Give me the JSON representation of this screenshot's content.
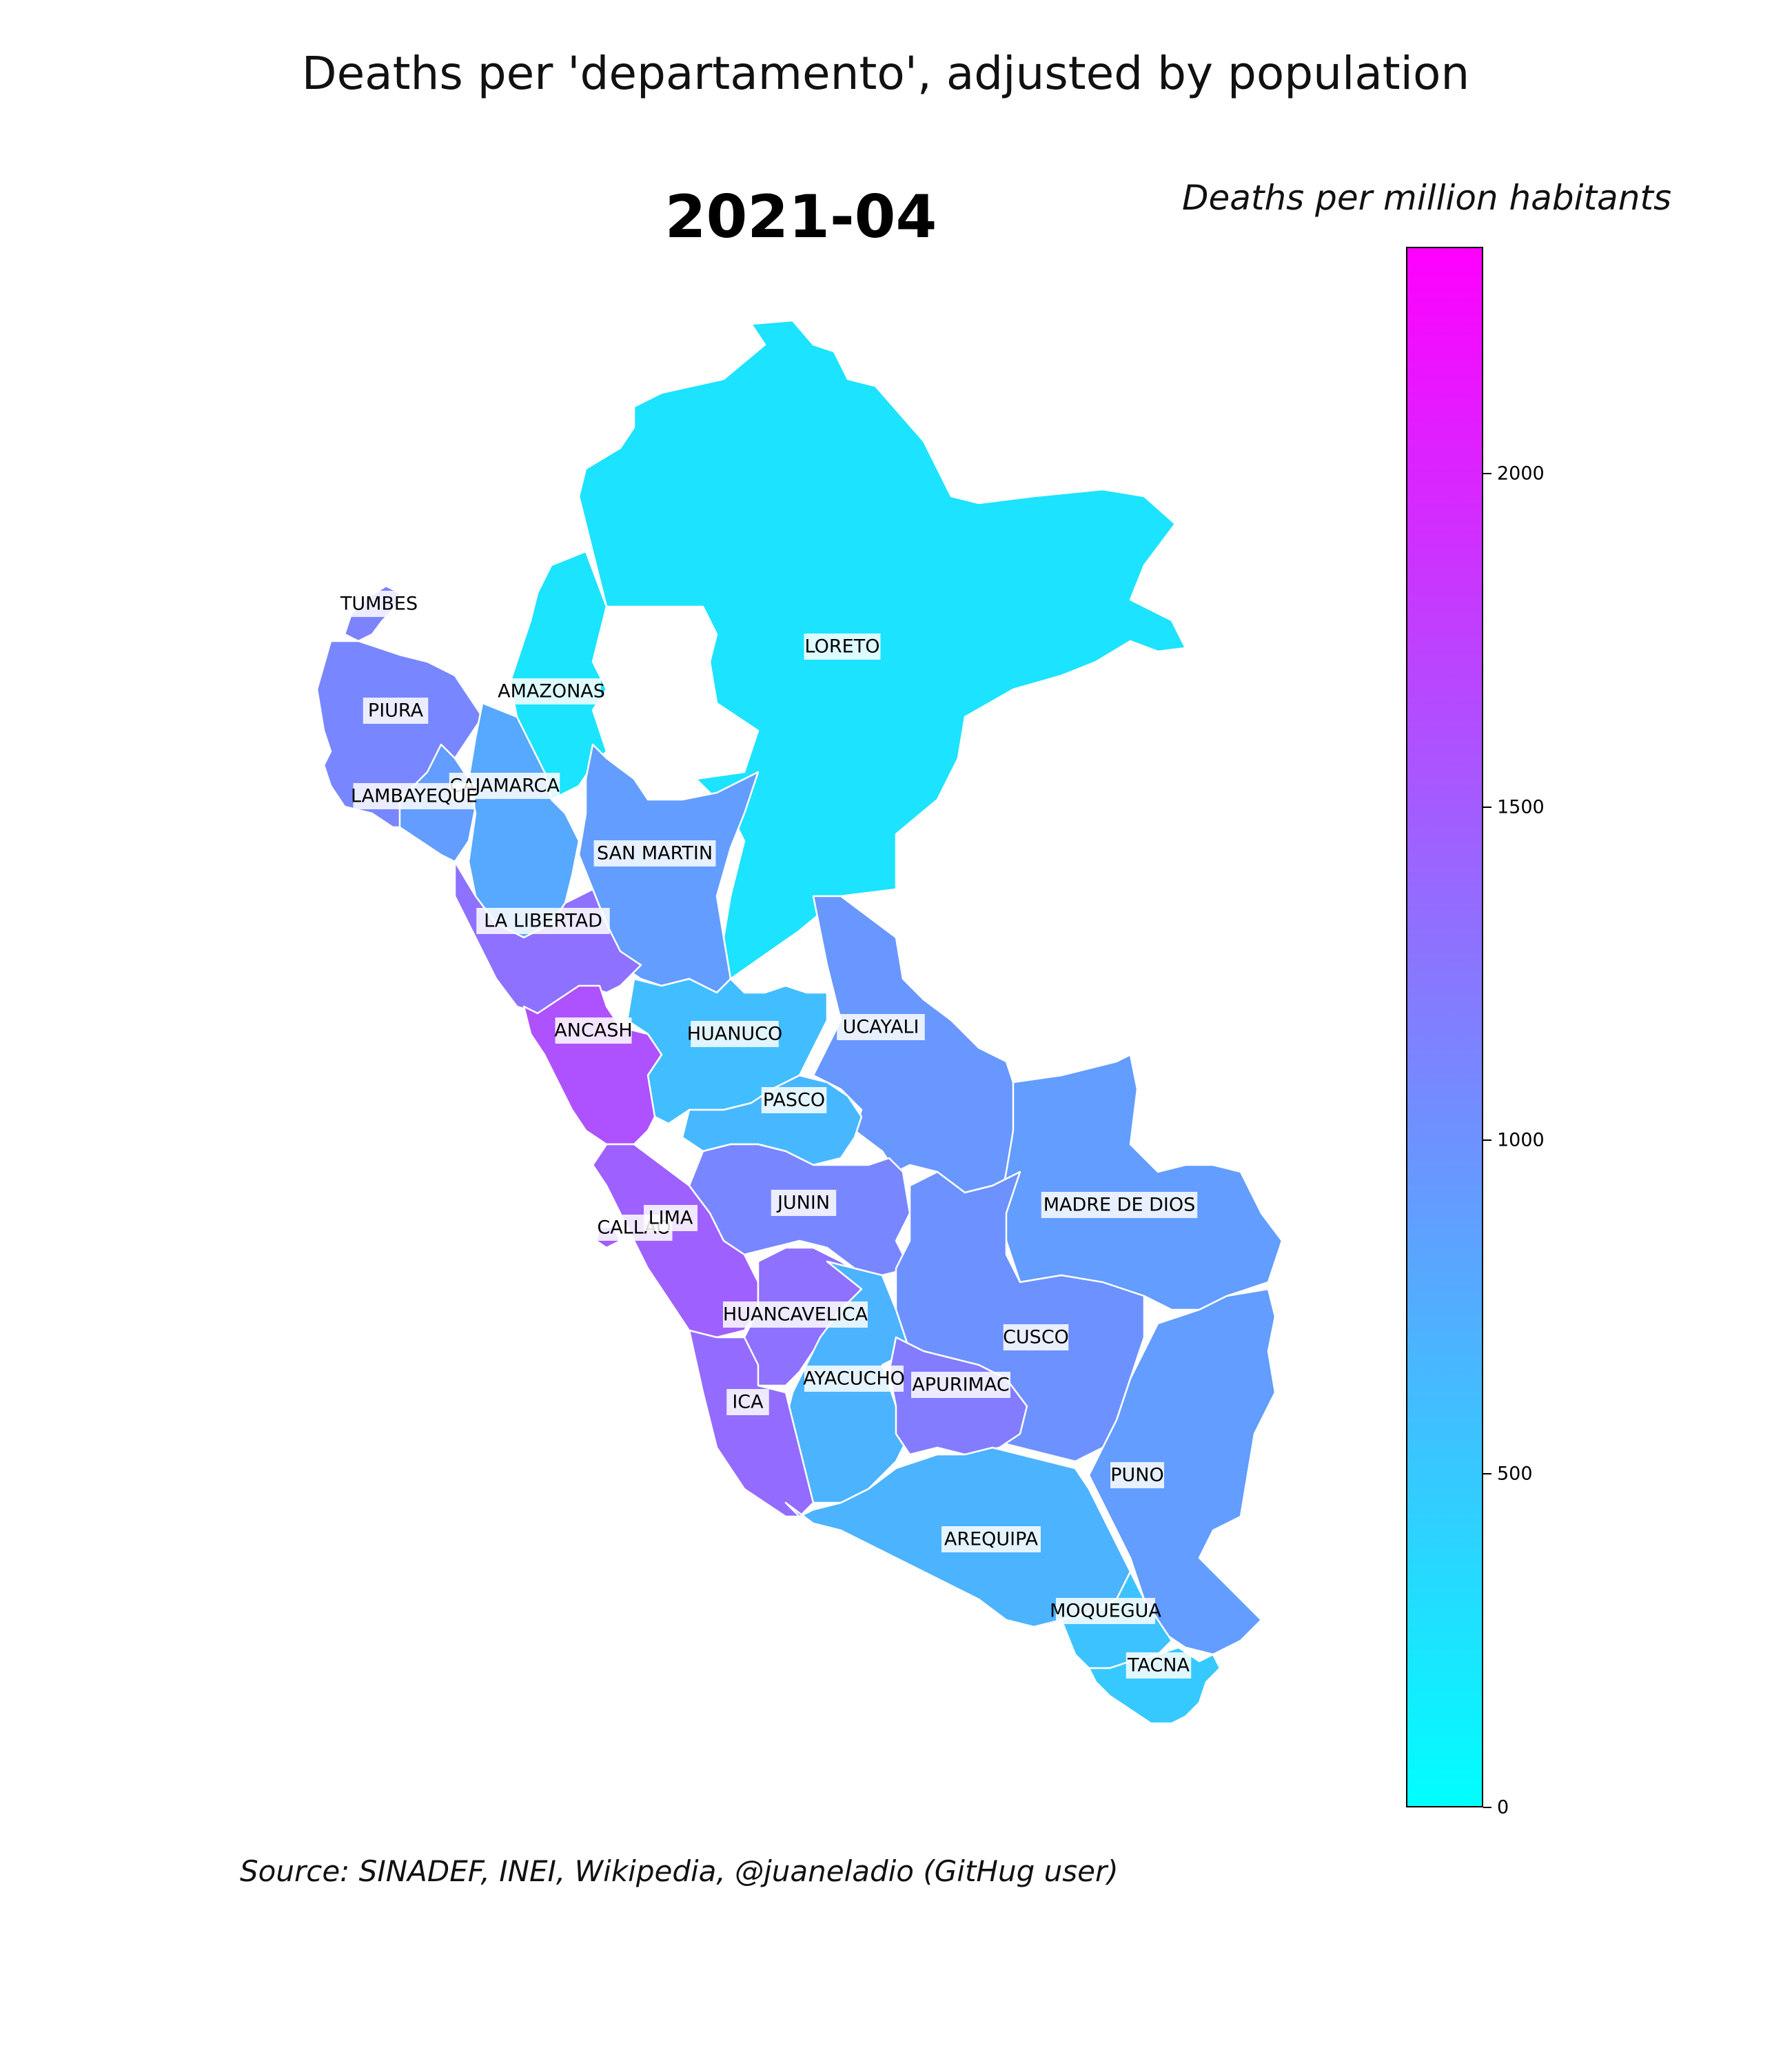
{
  "title": "Deaths per 'departamento', adjusted by population",
  "date": "2021-04",
  "colorbar": {
    "title": "Deaths per million habitants",
    "min": 0,
    "max": 2340,
    "ticks": [
      "0",
      "500",
      "1000",
      "1500",
      "2000"
    ],
    "colormap": [
      "#00ffff",
      "#ff00ff"
    ]
  },
  "source": "Source: SINADEF, INEI, Wikipedia, @juaneladio (GitHug user)",
  "departments": [
    {
      "id": "tumbes",
      "name": "TUMBES",
      "value": 1150
    },
    {
      "id": "piura",
      "name": "PIURA",
      "value": 1100
    },
    {
      "id": "lambayeque",
      "name": "LAMBAYEQUE",
      "value": 900
    },
    {
      "id": "cajamarca",
      "name": "CAJAMARCA",
      "value": 800
    },
    {
      "id": "amazonas",
      "name": "AMAZONAS",
      "value": 250
    },
    {
      "id": "loreto",
      "name": "LORETO",
      "value": 260
    },
    {
      "id": "san_martin",
      "name": "SAN MARTIN",
      "value": 900
    },
    {
      "id": "la_libertad",
      "name": "LA LIBERTAD",
      "value": 1300
    },
    {
      "id": "ancash",
      "name": "ANCASH",
      "value": 1600
    },
    {
      "id": "huanuco",
      "name": "HUANUCO",
      "value": 600
    },
    {
      "id": "ucayali",
      "name": "UCAYALI",
      "value": 950
    },
    {
      "id": "pasco",
      "name": "PASCO",
      "value": 650
    },
    {
      "id": "junin",
      "name": "JUNIN",
      "value": 1100
    },
    {
      "id": "lima",
      "name": "LIMA",
      "value": 1450
    },
    {
      "id": "callao",
      "name": "CALLAO",
      "value": 1500
    },
    {
      "id": "madre_de_dios",
      "name": "MADRE DE DIOS",
      "value": 900
    },
    {
      "id": "huancavelica",
      "name": "HUANCAVELICA",
      "value": 1300
    },
    {
      "id": "cusco",
      "name": "CUSCO",
      "value": 1000
    },
    {
      "id": "ayacucho",
      "name": "AYACUCHO",
      "value": 700
    },
    {
      "id": "apurimac",
      "name": "APURIMAC",
      "value": 1200
    },
    {
      "id": "ica",
      "name": "ICA",
      "value": 1350
    },
    {
      "id": "puno",
      "name": "PUNO",
      "value": 900
    },
    {
      "id": "arequipa",
      "name": "AREQUIPA",
      "value": 700
    },
    {
      "id": "moquegua",
      "name": "MOQUEGUA",
      "value": 550
    },
    {
      "id": "tacna",
      "name": "TACNA",
      "value": 500
    }
  ]
}
